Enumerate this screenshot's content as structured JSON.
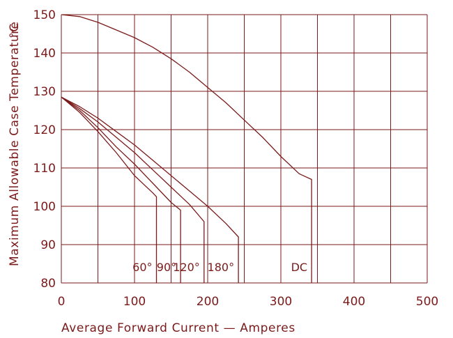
{
  "chart_data": {
    "type": "line",
    "xlabel": "Average Forward Current — Amperes",
    "ylabel": "Maximum Allowable Case Temperature",
    "ylabel_unit": "°C",
    "xlim": [
      0,
      500
    ],
    "ylim": [
      80,
      150
    ],
    "xticks": [
      0,
      100,
      200,
      300,
      400,
      500
    ],
    "yticks": [
      80,
      90,
      100,
      110,
      120,
      130,
      140,
      150
    ],
    "grid": true,
    "grid_x_step": 50,
    "grid_y_step": 10,
    "colors": {
      "line": "#7a1a1a",
      "grid": "#7a1a1a",
      "text": "#7a1a1a"
    },
    "series": [
      {
        "label": "60°",
        "x": [
          0,
          25,
          50,
          75,
          100,
          125,
          130,
          130
        ],
        "y": [
          128.5,
          124.5,
          119.5,
          114,
          108,
          103.5,
          102.5,
          80
        ]
      },
      {
        "label": "90°",
        "x": [
          0,
          25,
          50,
          75,
          100,
          125,
          150,
          163,
          163
        ],
        "y": [
          128.5,
          125,
          120.5,
          115.5,
          111,
          106,
          101,
          99,
          80
        ]
      },
      {
        "label": "120°",
        "x": [
          0,
          25,
          50,
          75,
          100,
          125,
          150,
          175,
          195,
          195
        ],
        "y": [
          128.5,
          125.5,
          122,
          118,
          114,
          109.5,
          105,
          100.5,
          96,
          80
        ]
      },
      {
        "label": "180°",
        "x": [
          0,
          25,
          50,
          75,
          100,
          125,
          150,
          175,
          200,
          225,
          242,
          242
        ],
        "y": [
          128.5,
          126,
          123,
          119.5,
          116,
          112,
          108,
          104,
          100,
          95.5,
          92,
          80
        ]
      },
      {
        "label": "DC",
        "x": [
          0,
          25,
          50,
          75,
          100,
          125,
          150,
          175,
          200,
          225,
          250,
          275,
          300,
          325,
          342,
          342
        ],
        "y": [
          150,
          149.5,
          148,
          146,
          144,
          141.5,
          138.5,
          135,
          131,
          127,
          122.5,
          118,
          113,
          108.5,
          107,
          80
        ]
      }
    ]
  }
}
